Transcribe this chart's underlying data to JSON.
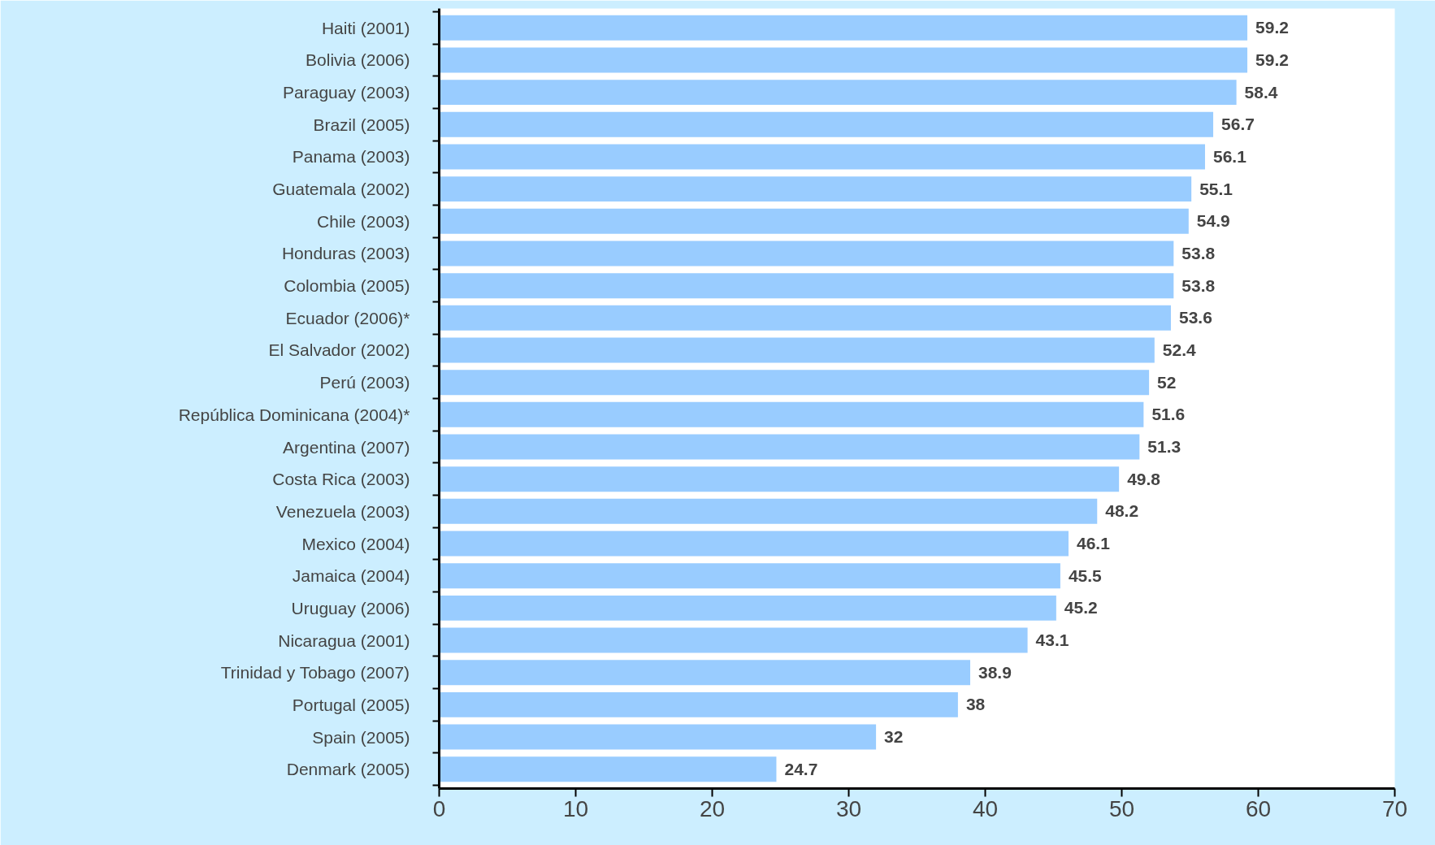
{
  "chart_data": {
    "type": "bar",
    "orientation": "horizontal",
    "categories": [
      "Haiti (2001)",
      "Bolivia (2006)",
      "Paraguay (2003)",
      "Brazil (2005)",
      "Panama (2003)",
      "Guatemala (2002)",
      "Chile (2003)",
      "Honduras (2003)",
      "Colombia (2005)",
      "Ecuador (2006)*",
      "El Salvador (2002)",
      "Perú (2003)",
      "República Dominicana (2004)*",
      "Argentina (2007)",
      "Costa Rica (2003)",
      "Venezuela (2003)",
      "Mexico (2004)",
      "Jamaica (2004)",
      "Uruguay (2006)",
      "Nicaragua (2001)",
      "Trinidad y Tobago (2007)",
      "Portugal (2005)",
      "Spain (2005)",
      "Denmark (2005)"
    ],
    "values": [
      59.2,
      59.2,
      58.4,
      56.7,
      56.1,
      55.1,
      54.9,
      53.8,
      53.8,
      53.6,
      52.4,
      52,
      51.6,
      51.3,
      49.8,
      48.2,
      46.1,
      45.5,
      45.2,
      43.1,
      38.9,
      38,
      32,
      24.7
    ],
    "color": "#99ccff",
    "xlim": [
      0,
      70
    ],
    "xticks": [
      0,
      10,
      20,
      30,
      40,
      50,
      60,
      70
    ],
    "data_labels": true,
    "grid": false
  }
}
